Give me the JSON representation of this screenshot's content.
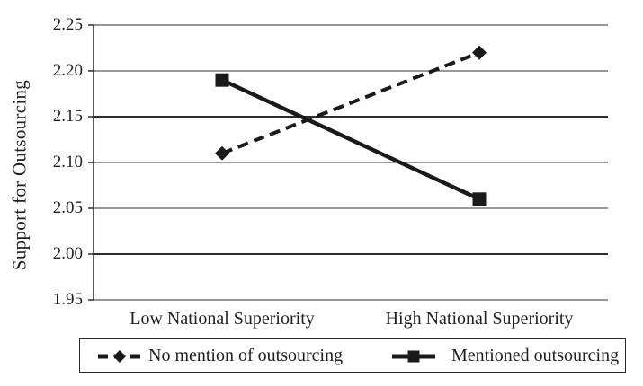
{
  "chart_data": {
    "type": "line",
    "title": "",
    "xlabel": "",
    "ylabel": "Support for Outsourcing",
    "categories": [
      "Low National Superiority",
      "High National Superiority"
    ],
    "series": [
      {
        "name": "No mention of outsourcing",
        "values": [
          2.11,
          2.22
        ],
        "line_style": "dashed",
        "marker": "diamond",
        "color": "#1a1a1a"
      },
      {
        "name": "Mentioned outsourcing",
        "values": [
          2.19,
          2.06
        ],
        "line_style": "solid",
        "marker": "square",
        "color": "#1a1a1a"
      }
    ],
    "ylim": [
      1.95,
      2.25
    ],
    "ytick_step": 0.05,
    "yticks": [
      "1.95",
      "2.00",
      "2.05",
      "2.10",
      "2.15",
      "2.20",
      "2.25"
    ],
    "grid": "horizontal-only",
    "legend_position": "bottom-boxed"
  },
  "colors": {
    "series": "#1a1a1a",
    "gridline": "#5a5a5a",
    "gridline_emphasis": "#2e2e2e",
    "axis": "#2e2e2e",
    "text": "#1f1f1f",
    "legend_border": "#2b2b2b",
    "background": "#ffffff"
  }
}
